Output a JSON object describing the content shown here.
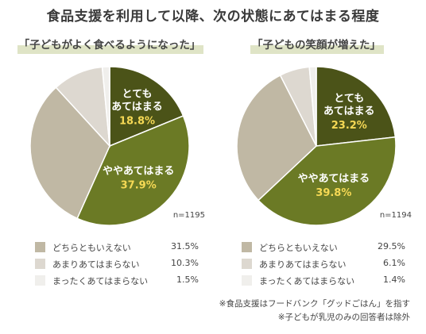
{
  "title": "食品支援を利用して以降、次の状態にあてはまる程度",
  "colors": {
    "very": "#4b5318",
    "somewhat": "#6b7a25",
    "neutral": "#c0b8a4",
    "notmuch": "#ddd8d0",
    "notatall": "#f0efec",
    "pct_highlight": "#f6d955"
  },
  "chart_data": [
    {
      "type": "pie",
      "title": "「子どもがよく食べるようになった」",
      "n_label": "n=1195",
      "slices": [
        {
          "label_lines": [
            "とても",
            "あてはまる"
          ],
          "value": 18.8,
          "display": "18.8%",
          "color_key": "very"
        },
        {
          "label_lines": [
            "ややあてはまる"
          ],
          "value": 37.9,
          "display": "37.9%",
          "color_key": "somewhat"
        },
        {
          "label_lines": [
            "どちらともいえない"
          ],
          "value": 31.5,
          "display": "31.5%",
          "color_key": "neutral"
        },
        {
          "label_lines": [
            "あまりあてはまらない"
          ],
          "value": 10.3,
          "display": "10.3%",
          "color_key": "notmuch"
        },
        {
          "label_lines": [
            "まったくあてはまらない"
          ],
          "value": 1.5,
          "display": "1.5%",
          "color_key": "notatall"
        }
      ]
    },
    {
      "type": "pie",
      "title": "「子どもの笑顔が増えた」",
      "n_label": "n=1194",
      "slices": [
        {
          "label_lines": [
            "とても",
            "あてはまる"
          ],
          "value": 23.2,
          "display": "23.2%",
          "color_key": "very"
        },
        {
          "label_lines": [
            "ややあてはまる"
          ],
          "value": 39.8,
          "display": "39.8%",
          "color_key": "somewhat"
        },
        {
          "label_lines": [
            "どちらともいえない"
          ],
          "value": 29.5,
          "display": "29.5%",
          "color_key": "neutral"
        },
        {
          "label_lines": [
            "あまりあてはまらない"
          ],
          "value": 6.1,
          "display": "6.1%",
          "color_key": "notmuch"
        },
        {
          "label_lines": [
            "まったくあてはまらない"
          ],
          "value": 1.4,
          "display": "1.4%",
          "color_key": "notatall"
        }
      ]
    }
  ],
  "notes": [
    "※食品支援はフードバンク「グッドごはん」を指す",
    "※子どもが乳児のみの回答者は除外"
  ]
}
